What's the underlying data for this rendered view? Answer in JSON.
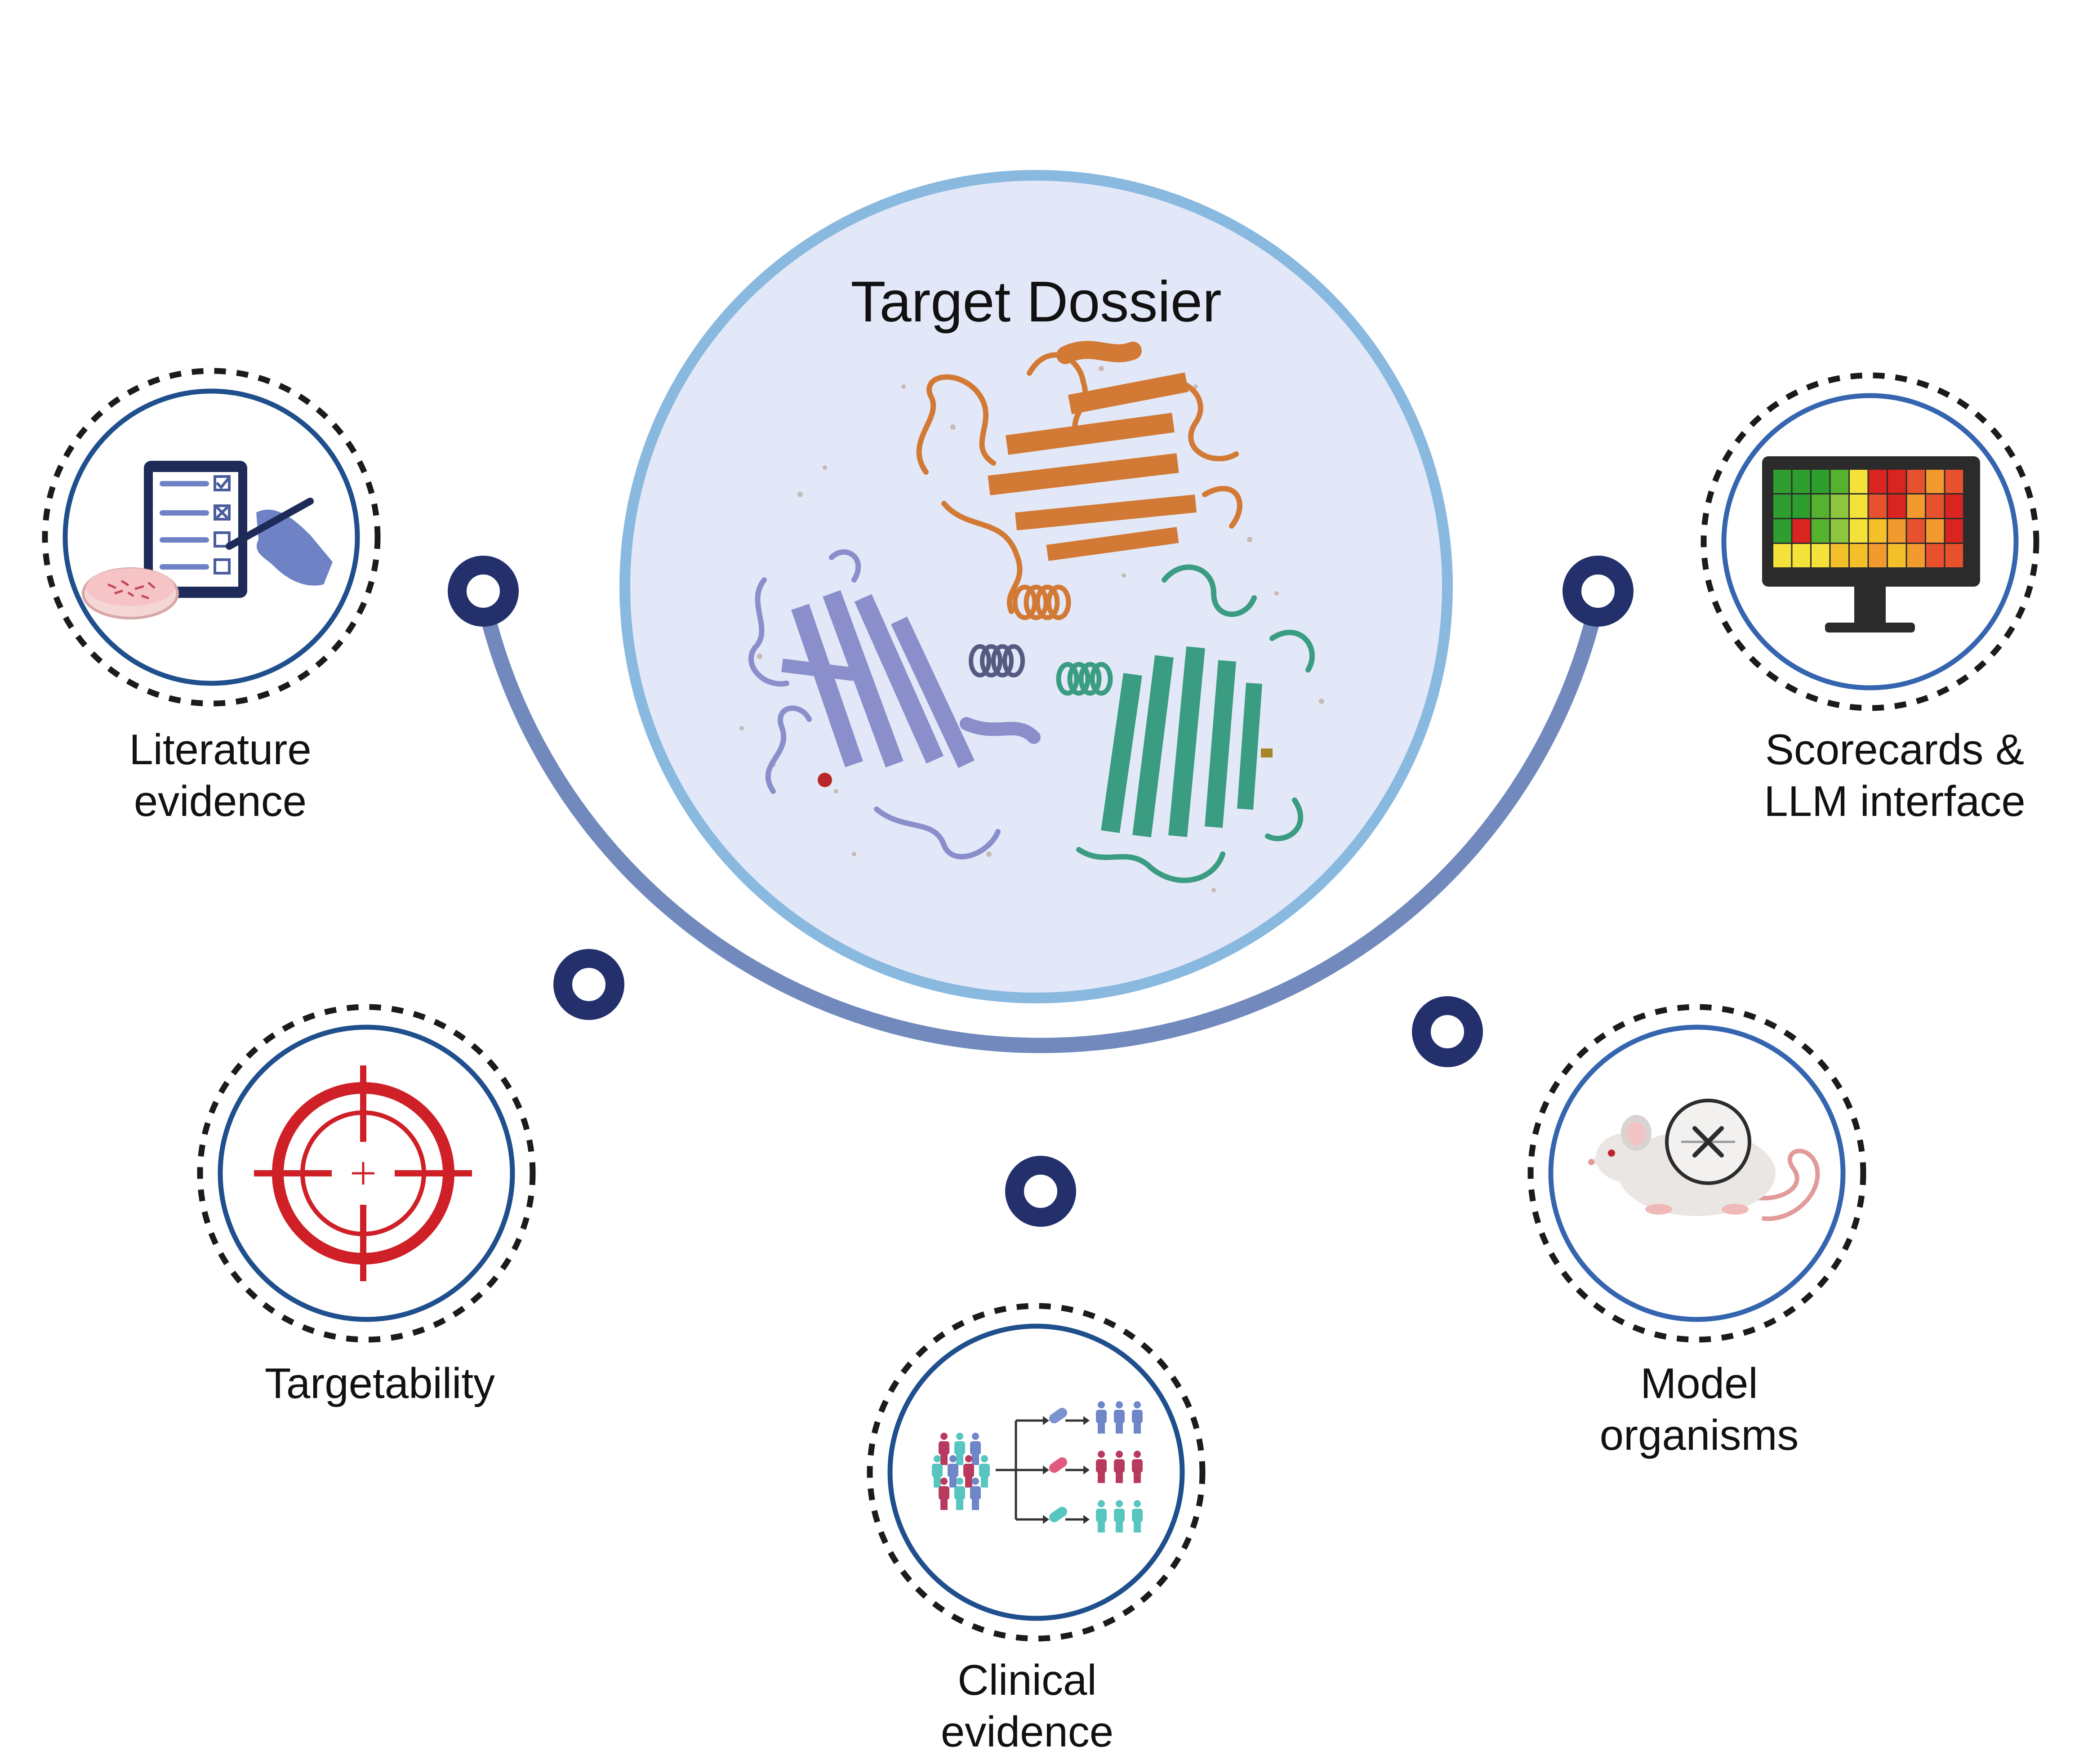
{
  "center": {
    "title": "Target Dossier",
    "illustration": "protein-trimer-ribbon"
  },
  "modules": [
    {
      "id": "literature",
      "line1": "Literature",
      "line2": "evidence",
      "icon": "clipboard-petri-dish-icon"
    },
    {
      "id": "targetability",
      "line1": "Targetability",
      "line2": "",
      "icon": "crosshair-target-icon"
    },
    {
      "id": "clinical",
      "line1": "Clinical",
      "line2": "evidence",
      "icon": "patient-cohort-icon"
    },
    {
      "id": "model",
      "line1": "Model",
      "line2": "organisms",
      "icon": "knockout-mouse-icon"
    },
    {
      "id": "scorecards",
      "line1": "Scorecards &",
      "line2": "LLM interface",
      "icon": "heatmap-monitor-icon"
    }
  ],
  "colors": {
    "arc": "#7189bd",
    "node": "#23306b",
    "center_fill": "#e3e8f8",
    "center_ring": "#8ab9e0",
    "module_ring": "#1f4f8c",
    "dotted_ring": "#1b1b1b",
    "protein_orange": "#d27a35",
    "protein_purple": "#8a8fcc",
    "protein_green": "#3a9c80",
    "target_red": "#cf2027"
  }
}
